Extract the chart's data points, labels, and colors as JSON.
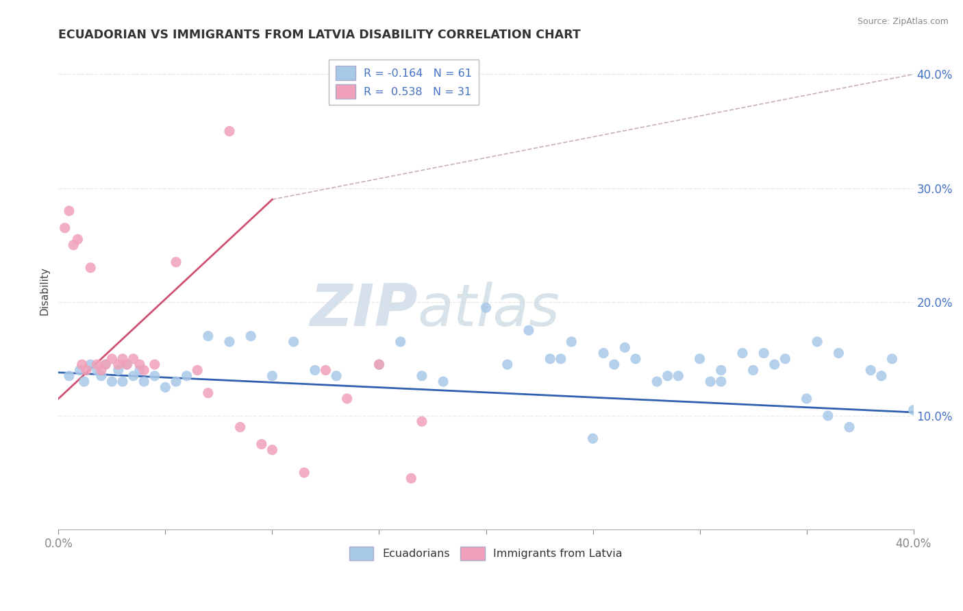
{
  "title": "ECUADORIAN VS IMMIGRANTS FROM LATVIA DISABILITY CORRELATION CHART",
  "source": "Source: ZipAtlas.com",
  "ylabel": "Disability",
  "watermark_zip": "ZIP",
  "watermark_atlas": "atlas",
  "legend_entry_blue": "R = -0.164   N = 61",
  "legend_entry_pink": "R =  0.538   N = 31",
  "legend_label_blue": "Ecuadorians",
  "legend_label_pink": "Immigrants from Latvia",
  "blue_color": "#a8c8e8",
  "pink_color": "#f0a0b8",
  "blue_line_color": "#3060b0",
  "pink_line_color": "#d05070",
  "dashed_color": "#c8b0b8",
  "grid_color": "#e8e8e8",
  "background_color": "#ffffff",
  "blue_scatter_x": [
    0.5,
    1.0,
    1.2,
    1.5,
    1.8,
    2.0,
    2.2,
    2.5,
    2.8,
    3.0,
    3.2,
    3.5,
    3.8,
    4.0,
    4.5,
    5.0,
    5.5,
    6.0,
    7.0,
    8.0,
    9.0,
    10.0,
    11.0,
    12.0,
    13.0,
    15.0,
    16.0,
    17.0,
    18.0,
    20.0,
    21.0,
    22.0,
    23.0,
    24.0,
    25.0,
    26.0,
    27.0,
    28.0,
    29.0,
    30.0,
    31.0,
    32.0,
    33.0,
    34.0,
    35.0,
    36.0,
    37.0,
    38.0,
    39.0,
    40.0,
    25.5,
    28.5,
    31.0,
    33.5,
    36.5,
    23.5,
    26.5,
    30.5,
    32.5,
    35.5,
    38.5
  ],
  "blue_scatter_y": [
    13.5,
    14.0,
    13.0,
    14.5,
    14.0,
    13.5,
    14.5,
    13.0,
    14.0,
    13.0,
    14.5,
    13.5,
    14.0,
    13.0,
    13.5,
    12.5,
    13.0,
    13.5,
    17.0,
    16.5,
    17.0,
    13.5,
    16.5,
    14.0,
    13.5,
    14.5,
    16.5,
    13.5,
    13.0,
    19.5,
    14.5,
    17.5,
    15.0,
    16.5,
    8.0,
    14.5,
    15.0,
    13.0,
    13.5,
    15.0,
    13.0,
    15.5,
    15.5,
    15.0,
    11.5,
    10.0,
    9.0,
    14.0,
    15.0,
    10.5,
    15.5,
    13.5,
    14.0,
    14.5,
    15.5,
    15.0,
    16.0,
    13.0,
    14.0,
    16.5,
    13.5
  ],
  "pink_scatter_x": [
    0.3,
    0.5,
    0.7,
    0.9,
    1.1,
    1.3,
    1.5,
    1.8,
    2.0,
    2.2,
    2.5,
    2.8,
    3.0,
    3.2,
    3.5,
    3.8,
    4.0,
    5.5,
    7.0,
    8.5,
    10.0,
    11.5,
    4.5,
    6.5,
    9.5,
    12.5,
    15.0,
    17.0,
    8.0,
    13.5,
    16.5
  ],
  "pink_scatter_y": [
    26.5,
    28.0,
    25.0,
    25.5,
    14.5,
    14.0,
    23.0,
    14.5,
    14.0,
    14.5,
    15.0,
    14.5,
    15.0,
    14.5,
    15.0,
    14.5,
    14.0,
    23.5,
    12.0,
    9.0,
    7.0,
    5.0,
    14.5,
    14.0,
    7.5,
    14.0,
    14.5,
    9.5,
    35.0,
    11.5,
    4.5
  ],
  "blue_line_x": [
    0,
    40
  ],
  "blue_line_y": [
    13.8,
    10.3
  ],
  "pink_line_x": [
    0.0,
    10.0
  ],
  "pink_line_y": [
    11.5,
    29.0
  ],
  "dashed_line_x": [
    10.0,
    40.0
  ],
  "dashed_line_y": [
    29.0,
    40.0
  ],
  "xmin": 0,
  "xmax": 40,
  "ymin": 0,
  "ymax": 42,
  "xtick_positions": [
    0,
    5,
    10,
    15,
    20,
    25,
    30,
    35,
    40
  ],
  "ytick_positions": [
    10,
    20,
    30,
    40
  ],
  "ytick_labels": [
    "10.0%",
    "20.0%",
    "30.0%",
    "40.0%"
  ]
}
